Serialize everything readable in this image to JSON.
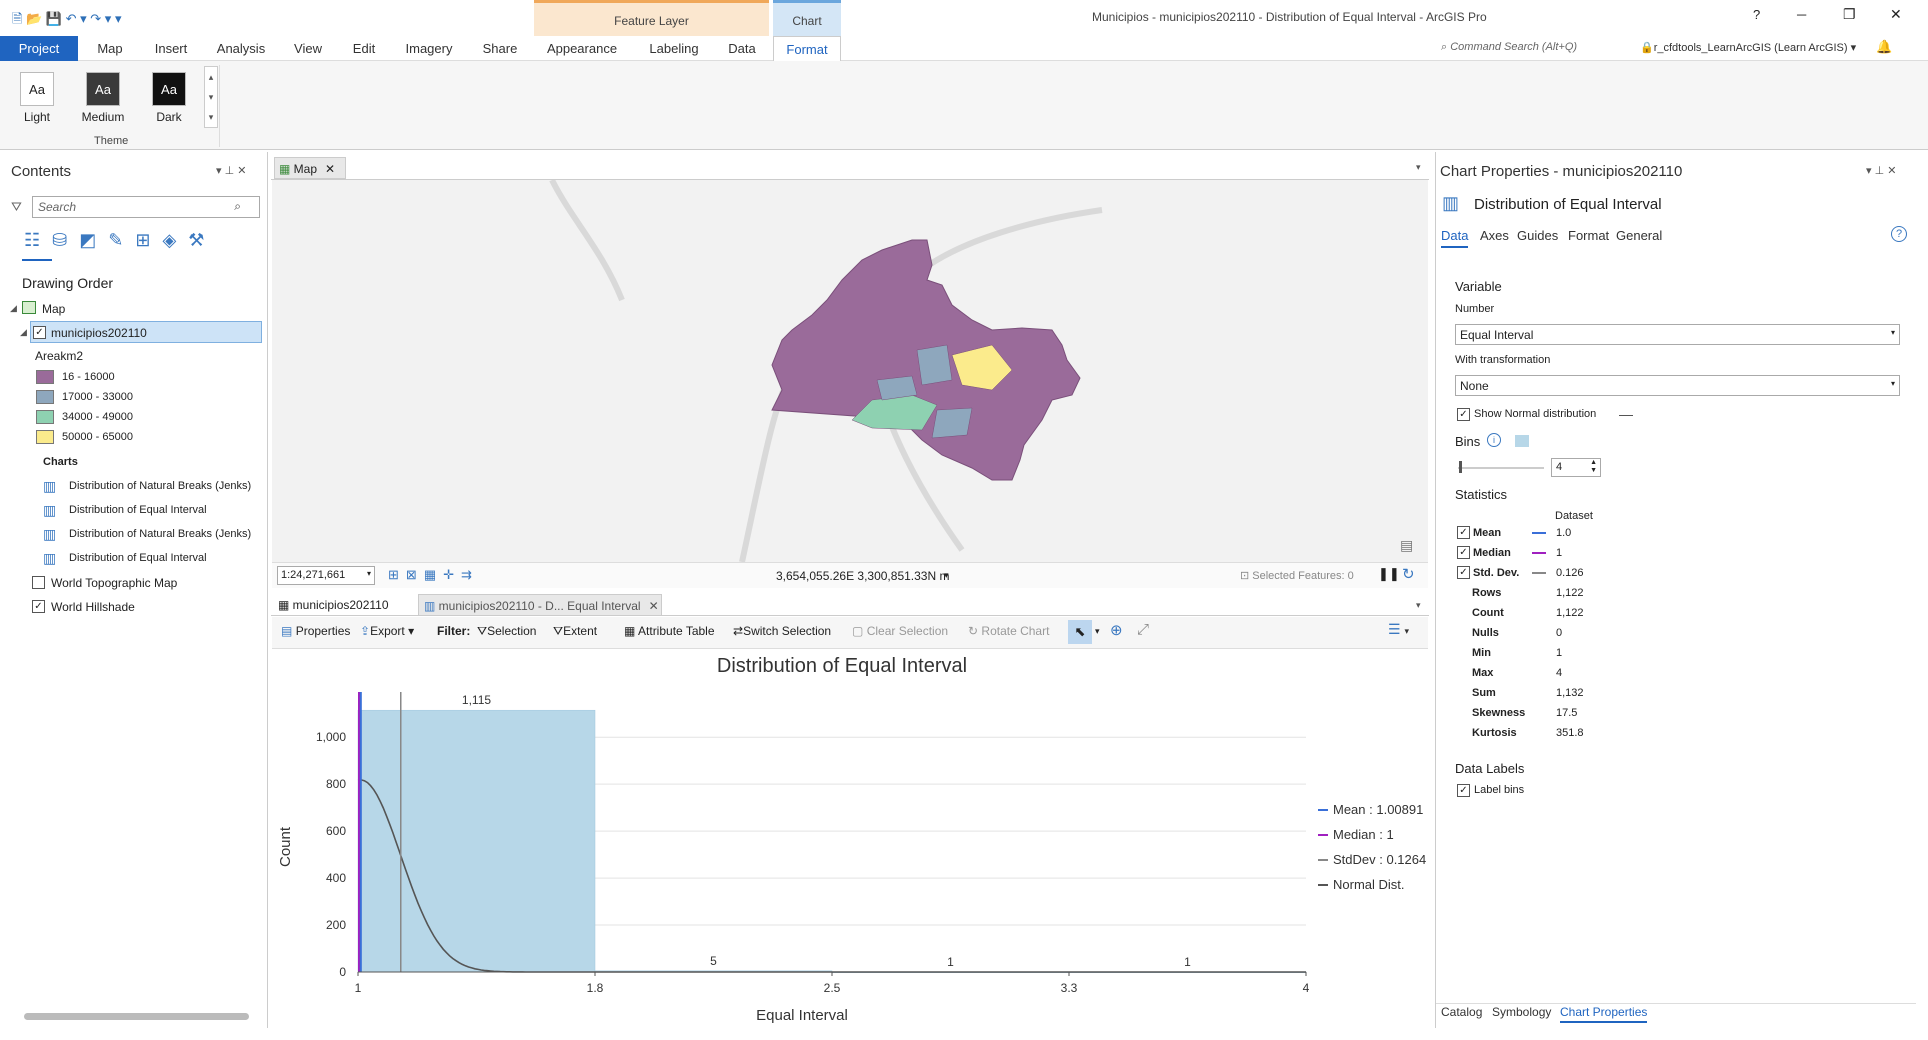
{
  "titlebar": {
    "window_title": "Municipios - municipios202110 - Distribution of Equal Interval - ArcGIS Pro",
    "feature_layer_ctx": "Feature Layer",
    "chart_ctx": "Chart",
    "command_search_placeholder": "Command Search (Alt+Q)",
    "user": "r_cfdtools_LearnArcGIS (Learn ArcGIS)",
    "help": "?",
    "min": "─",
    "restore": "❐",
    "close": "✕"
  },
  "tabs": [
    "Project",
    "Map",
    "Insert",
    "Analysis",
    "View",
    "Edit",
    "Imagery",
    "Share",
    "Appearance",
    "Labeling",
    "Data",
    "Format"
  ],
  "ribbon": {
    "themes": [
      {
        "label": "Light",
        "glyph": "Aa"
      },
      {
        "label": "Medium",
        "glyph": "Aa"
      },
      {
        "label": "Dark",
        "glyph": "Aa"
      }
    ],
    "group_label": "Theme"
  },
  "contents": {
    "title": "Contents",
    "search_placeholder": "Search",
    "drawing_order": "Drawing Order",
    "map": "Map",
    "layer": "municipios202110",
    "field": "Areakm2",
    "legend": [
      {
        "label": "16 - 16000",
        "color": "#9a6b9a"
      },
      {
        "label": "17000 - 33000",
        "color": "#8ea7bd"
      },
      {
        "label": "34000 - 49000",
        "color": "#8ed1b1"
      },
      {
        "label": "50000 - 65000",
        "color": "#fbeb8c"
      }
    ],
    "charts_label": "Charts",
    "charts": [
      "Distribution of Natural Breaks (Jenks)",
      "Distribution of Equal Interval",
      "Distribution of Natural Breaks (Jenks)",
      "Distribution of Equal Interval"
    ],
    "basemaps": [
      "World Topographic Map",
      "World Hillshade"
    ]
  },
  "map_view": {
    "tab": "Map",
    "scale": "1:24,271,661",
    "coords": "3,654,055.26E 3,300,851.33N m",
    "selected": "Selected Features: 0"
  },
  "chart_view": {
    "tab1": "municipios202110",
    "tab2": "municipios202110 - D... Equal Interval",
    "toolbar": {
      "properties": "Properties",
      "export": "Export",
      "filter": "Filter:",
      "selection": "Selection",
      "extent": "Extent",
      "attr_table": "Attribute Table",
      "switch_sel": "Switch Selection",
      "clear_sel": "Clear Selection",
      "rotate": "Rotate Chart"
    }
  },
  "chart_data": {
    "type": "bar",
    "title": "Distribution of Equal Interval",
    "xlabel": "Equal Interval",
    "ylabel": "Count",
    "bins": [
      {
        "x0": 1,
        "x1": 1.75,
        "count": 1115,
        "label": "1,115"
      },
      {
        "x0": 1.75,
        "x1": 2.5,
        "count": 5,
        "label": "5"
      },
      {
        "x0": 2.5,
        "x1": 3.25,
        "count": 1,
        "label": "1"
      },
      {
        "x0": 3.25,
        "x1": 4,
        "count": 1,
        "label": "1"
      }
    ],
    "x_ticks": [
      "1",
      "1.8",
      "2.5",
      "3.3",
      "4"
    ],
    "y_ticks": [
      "0",
      "200",
      "400",
      "600",
      "800",
      "1,000"
    ],
    "ylim": [
      0,
      1150
    ],
    "xlim": [
      1,
      4
    ],
    "mean": 1.00891,
    "median": 1,
    "stddev": 0.1264,
    "legend": [
      "Mean : 1.00891",
      "Median : 1",
      "StdDev : 0.1264",
      "Normal Dist."
    ],
    "colors": {
      "bar": "#b7d7e8",
      "mean": "#3a6fd8",
      "median": "#a020c0",
      "std": "#888888",
      "normal": "#555555"
    }
  },
  "props": {
    "title": "Chart Properties - municipios202110",
    "chart_name": "Distribution of Equal Interval",
    "tabs": [
      "Data",
      "Axes",
      "Guides",
      "Format",
      "General"
    ],
    "variable": "Variable",
    "number": "Number",
    "number_val": "Equal Interval",
    "with_transformation": "With transformation",
    "transform_val": "None",
    "show_normal": "Show Normal distribution",
    "bins": "Bins",
    "bins_val": "4",
    "statistics": "Statistics",
    "dataset": "Dataset",
    "stats": [
      {
        "k": "Mean",
        "v": "1.0"
      },
      {
        "k": "Median",
        "v": "1"
      },
      {
        "k": "Std. Dev.",
        "v": "0.126"
      },
      {
        "k": "Rows",
        "v": "1,122"
      },
      {
        "k": "Count",
        "v": "1,122"
      },
      {
        "k": "Nulls",
        "v": "0"
      },
      {
        "k": "Min",
        "v": "1"
      },
      {
        "k": "Max",
        "v": "4"
      },
      {
        "k": "Sum",
        "v": "1,132"
      },
      {
        "k": "Skewness",
        "v": "17.5"
      },
      {
        "k": "Kurtosis",
        "v": "351.8"
      }
    ],
    "data_labels": "Data Labels",
    "label_bins": "Label bins",
    "bottom_tabs": [
      "Catalog",
      "Symbology",
      "Chart Properties"
    ]
  }
}
